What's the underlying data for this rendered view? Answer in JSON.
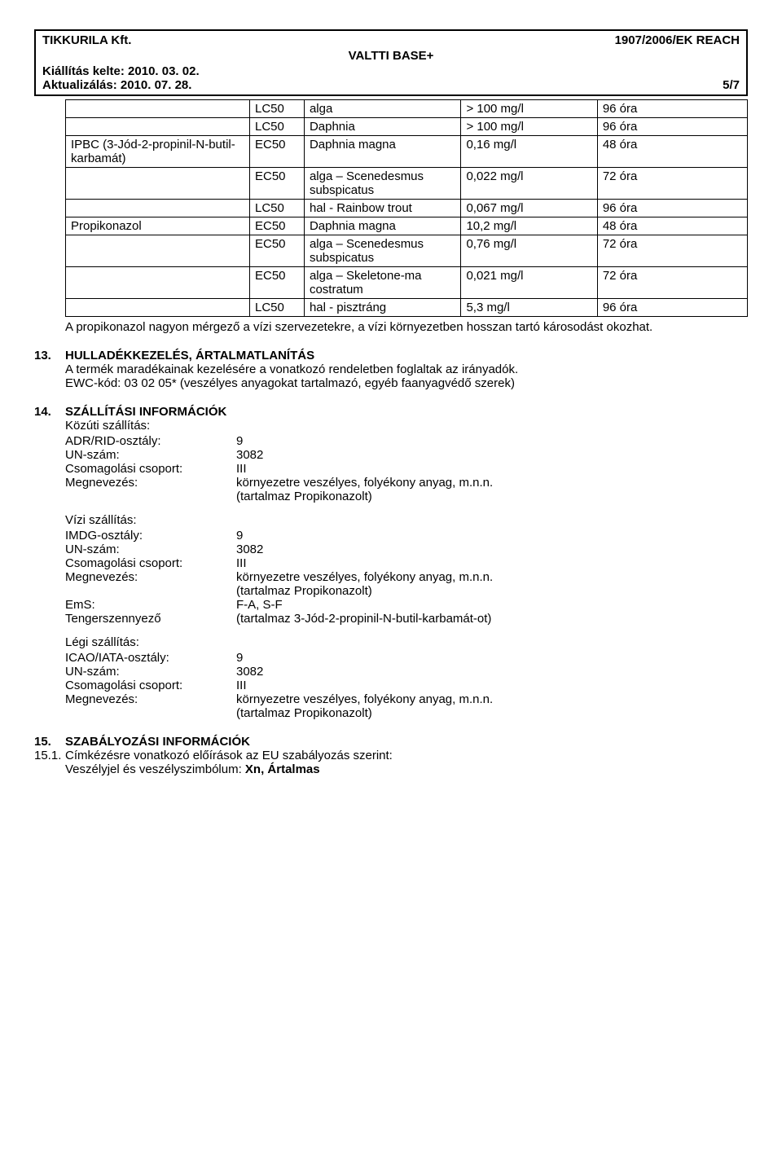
{
  "header": {
    "company": "TIKKURILA Kft.",
    "regulation": "1907/2006/EK REACH",
    "product": "VALTTI BASE+",
    "issued_label": "Kiállítás kelte: 2010. 03. 02.",
    "updated_label": "Aktualizálás: 2010. 07. 28.",
    "page": "5/7"
  },
  "tox_table": {
    "columns_count": 5,
    "col_widths": [
      "27%",
      "8%",
      "23%",
      "20%",
      "22%"
    ],
    "rows": [
      [
        "",
        "LC50",
        "alga",
        "> 100 mg/l",
        "96 óra"
      ],
      [
        "",
        "LC50",
        "Daphnia",
        "> 100 mg/l",
        "96 óra"
      ],
      [
        "IPBC (3-Jód-2-propinil-N-butil-karbamát)",
        "EC50",
        "Daphnia magna",
        "0,16 mg/l",
        "48 óra"
      ],
      [
        "",
        "EC50",
        "alga – Scenedesmus subspicatus",
        "0,022 mg/l",
        "72 óra"
      ],
      [
        "",
        "LC50",
        "hal - Rainbow trout",
        "0,067 mg/l",
        "96 óra"
      ],
      [
        "Propikonazol",
        "EC50",
        "Daphnia magna",
        "10,2 mg/l",
        "48 óra"
      ],
      [
        "",
        "EC50",
        "alga – Scenedesmus subspicatus",
        "0,76 mg/l",
        "72 óra"
      ],
      [
        "",
        "EC50",
        "alga – Skeletone-ma costratum",
        "0,021 mg/l",
        "72 óra"
      ],
      [
        "",
        "LC50",
        "hal - pisztráng",
        "5,3 mg/l",
        "96 óra"
      ]
    ]
  },
  "note_after_table": "A propikonazol nagyon mérgező a vízi szervezetekre, a vízi környezetben hosszan tartó károsodást okozhat.",
  "s13": {
    "num": "13.",
    "title": "HULLADÉKKEZELÉS, ÁRTALMATLANÍTÁS",
    "line1": "A termék maradékainak kezelésére a vonatkozó rendeletben foglaltak az irányadók.",
    "line2": "EWC-kód: 03 02 05*  (veszélyes anyagokat tartalmazó, egyéb faanyagvédő szerek)"
  },
  "s14": {
    "num": "14.",
    "title": "SZÁLLÍTÁSI INFORMÁCIÓK",
    "road": {
      "heading": "Közúti szállítás:",
      "rows": [
        [
          "ADR/RID-osztály:",
          "9"
        ],
        [
          "UN-szám:",
          "3082"
        ],
        [
          "Csomagolási csoport:",
          "III"
        ],
        [
          "Megnevezés:",
          "környezetre veszélyes, folyékony anyag, m.n.n."
        ]
      ],
      "extra": "(tartalmaz Propikonazolt)"
    },
    "water": {
      "heading": "Vízi szállítás:",
      "rows": [
        [
          "IMDG-osztály:",
          "9"
        ],
        [
          "UN-szám:",
          "3082"
        ],
        [
          "Csomagolási csoport:",
          "III"
        ],
        [
          "Megnevezés:",
          "környezetre veszélyes, folyékony anyag, m.n.n."
        ]
      ],
      "extra": "(tartalmaz Propikonazolt)",
      "rows2": [
        [
          "EmS:",
          "F-A, S-F"
        ],
        [
          "Tengerszennyező",
          "(tartalmaz 3-Jód-2-propinil-N-butil-karbamát-ot)"
        ]
      ]
    },
    "air": {
      "heading": "Légi szállítás:",
      "rows": [
        [
          "ICAO/IATA-osztály:",
          "9"
        ],
        [
          "UN-szám:",
          "3082"
        ],
        [
          "Csomagolási csoport:",
          "III"
        ],
        [
          "Megnevezés:",
          "környezetre veszélyes, folyékony anyag, m.n.n."
        ]
      ],
      "extra": "(tartalmaz Propikonazolt)"
    }
  },
  "s15": {
    "num": "15.",
    "title": "SZABÁLYOZÁSI INFORMÁCIÓK",
    "sub_num": "15.1.",
    "sub_text": "Címkézésre vonatkozó előírások az EU szabályozás szerint:",
    "hazard_line": "Veszélyjel és veszélyszimbólum: Xn,  Ártalmas"
  }
}
